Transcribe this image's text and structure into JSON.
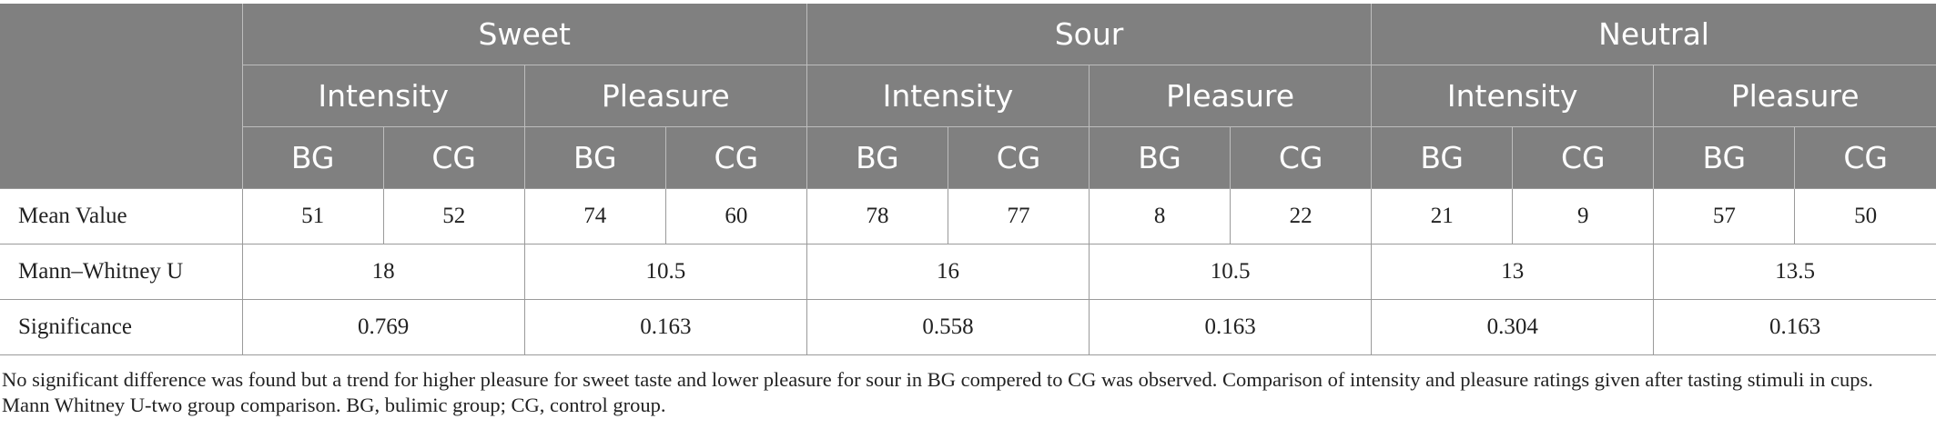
{
  "header": {
    "groups": [
      "Sweet",
      "Sour",
      "Neutral"
    ],
    "measures": [
      "Intensity",
      "Pleasure",
      "Intensity",
      "Pleasure",
      "Intensity",
      "Pleasure"
    ],
    "subgroups": [
      "BG",
      "CG",
      "BG",
      "CG",
      "BG",
      "CG",
      "BG",
      "CG",
      "BG",
      "CG",
      "BG",
      "CG"
    ]
  },
  "rows": {
    "mean": {
      "label": "Mean Value",
      "values": [
        "51",
        "52",
        "74",
        "60",
        "78",
        "77",
        "8",
        "22",
        "21",
        "9",
        "57",
        "50"
      ]
    },
    "mann": {
      "label": "Mann–Whitney U",
      "values": [
        "18",
        "10.5",
        "16",
        "10.5",
        "13",
        "13.5"
      ]
    },
    "sig": {
      "label": "Significance",
      "values": [
        "0.769",
        "0.163",
        "0.558",
        "0.163",
        "0.304",
        "0.163"
      ]
    }
  },
  "caption": "No significant difference was found but a trend for higher pleasure for sweet taste and lower pleasure for sour in BG compered to CG was observed. Comparison of intensity and pleasure ratings given after tasting stimuli in cups. Mann Whitney U-two group comparison. BG, bulimic group; CG, control group."
}
